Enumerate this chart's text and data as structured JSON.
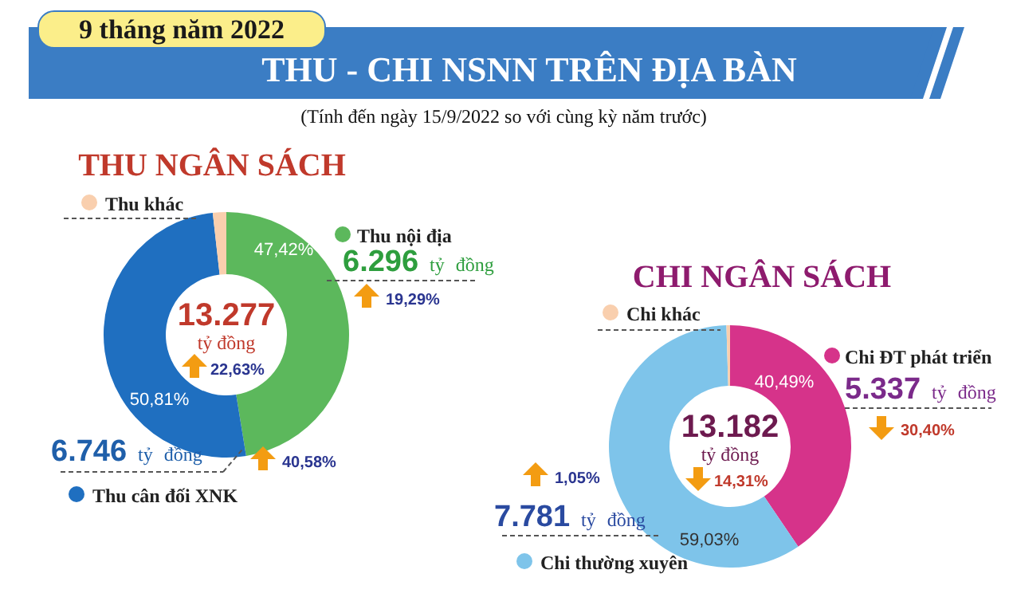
{
  "chart_data": [
    {
      "type": "other",
      "title": "THU - CHI NSNN TRÊN ĐỊA BÀN",
      "subtitle": "(Tính đến ngày 15/9/2022 so với cùng kỳ năm trước)",
      "annotations": [
        "9 tháng năm 2022"
      ]
    },
    {
      "type": "donut",
      "title": "THU NGÂN SÁCH",
      "categories": [
        "Thu nội địa",
        "Thu cân đối XNK",
        "Thu khác"
      ],
      "values": [
        47.42,
        50.81,
        1.77
      ],
      "colors": [
        "#5cb85c",
        "#1f6fc0",
        "#f9cfae"
      ],
      "legend": "right",
      "value_labels": [
        "47,42%",
        "50,81%",
        null
      ],
      "annotations": [
        "13.277 tỷ đồng",
        "22,63%",
        "6.296 tỷ đồng",
        "19,29%",
        "6.746 tỷ đồng",
        "40,58%"
      ]
    },
    {
      "type": "donut",
      "title": "CHI NGÂN SÁCH",
      "categories": [
        "Chi ĐT phát triển",
        "Chi thường xuyên",
        "Chi khác"
      ],
      "values": [
        40.49,
        59.03,
        0.48
      ],
      "colors": [
        "#d6338a",
        "#7ec4ea",
        "#f9cfae"
      ],
      "legend": "right",
      "value_labels": [
        "40,49%",
        "59,03%",
        null
      ],
      "annotations": [
        "13.182 tỷ đồng",
        "14,31%",
        "5.337 tỷ đồng",
        "30,40%",
        "7.781 tỷ đồng",
        "1,05%"
      ]
    }
  ]
}
